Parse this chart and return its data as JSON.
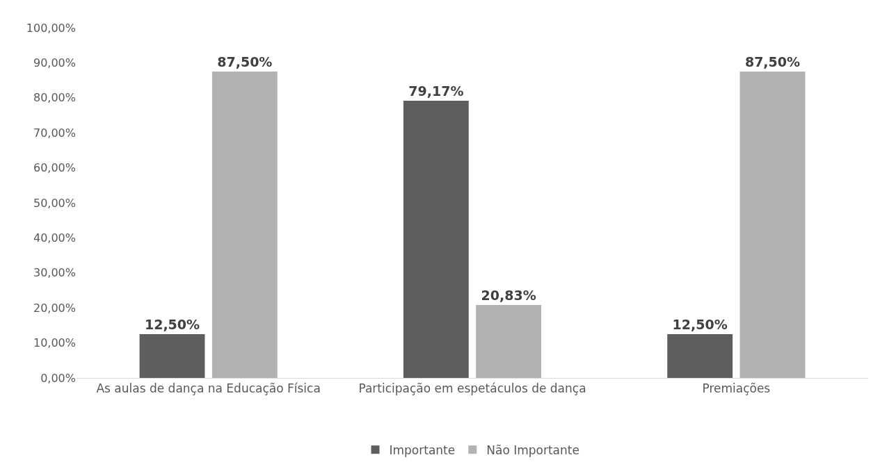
{
  "chart_data": {
    "type": "bar",
    "categories": [
      "As aulas de dança na Educação Física",
      "Participação em espetáculos de dança",
      "Premiações"
    ],
    "series": [
      {
        "name": "Importante",
        "color": "#5e5e5e",
        "values": [
          12.5,
          79.17,
          12.5
        ],
        "value_labels": [
          "12,50%",
          "79,17%",
          "12,50%"
        ]
      },
      {
        "name": "Não Importante",
        "color": "#b2b2b2",
        "values": [
          87.5,
          20.83,
          87.5
        ],
        "value_labels": [
          "87,50%",
          "20,83%",
          "87,50%"
        ]
      }
    ],
    "ylim": [
      0,
      100
    ],
    "yticks": [
      {
        "value": 0,
        "label": "0,00%"
      },
      {
        "value": 10,
        "label": "10,00%"
      },
      {
        "value": 20,
        "label": "20,00%"
      },
      {
        "value": 30,
        "label": "30,00%"
      },
      {
        "value": 40,
        "label": "40,00%"
      },
      {
        "value": 50,
        "label": "50,00%"
      },
      {
        "value": 60,
        "label": "60,00%"
      },
      {
        "value": 70,
        "label": "70,00%"
      },
      {
        "value": 80,
        "label": "80,00%"
      },
      {
        "value": 90,
        "label": "90,00%"
      },
      {
        "value": 100,
        "label": "100,00%"
      }
    ],
    "legend": "bottom"
  }
}
